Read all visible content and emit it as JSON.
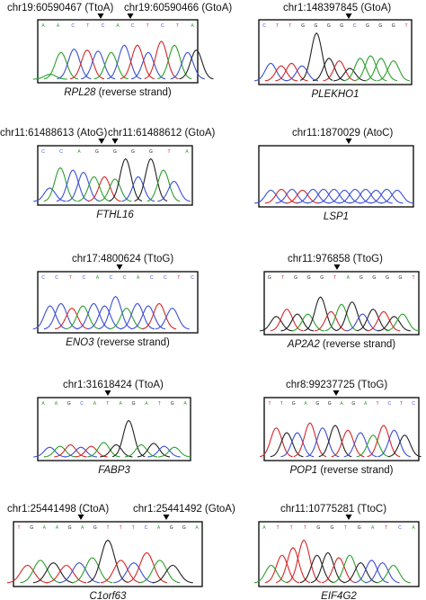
{
  "colors": {
    "A": "#2ca02c",
    "C": "#3b4fd6",
    "G": "#222222",
    "T": "#d62728",
    "frame": "#000000",
    "arrow": "#000000"
  },
  "panels": [
    {
      "id": "rpl28",
      "annotations": [
        "chr19:60590467 (TtoA)",
        "chr19:60590466 (GtoA)"
      ],
      "gene": "RPL28",
      "suffix": " (reverse strand)",
      "bases": "AACTCACTCTA",
      "trace": [
        [
          0.4,
          "A",
          0.1
        ],
        [
          0.9,
          "A",
          0.55
        ],
        [
          1.5,
          "C",
          0.62
        ],
        [
          2.1,
          "T",
          0.6
        ],
        [
          2.6,
          "C",
          0.58
        ],
        [
          3.2,
          "A",
          0.55
        ],
        [
          3.8,
          "C",
          0.7
        ],
        [
          4.4,
          "T",
          0.7
        ],
        [
          4.9,
          "C",
          0.55
        ],
        [
          5.5,
          "T",
          0.78
        ],
        [
          6.1,
          "A",
          0.7
        ],
        [
          6.7,
          "C",
          0.55
        ],
        [
          7.1,
          "G",
          0.6
        ]
      ]
    },
    {
      "id": "plekho1",
      "annotations": [
        "chr1:148397845 (GtoA)"
      ],
      "gene": "PLEKHO1",
      "suffix": "",
      "bases": "CTTGGGGCGGGT",
      "trace": [
        [
          0.4,
          "C",
          0.35
        ],
        [
          0.9,
          "T",
          0.3
        ],
        [
          1.4,
          "T",
          0.35
        ],
        [
          1.9,
          "C",
          0.3
        ],
        [
          2.6,
          "G",
          0.95
        ],
        [
          3.2,
          "G",
          0.45
        ],
        [
          3.7,
          "T",
          0.4
        ],
        [
          4.2,
          "G",
          0.25
        ],
        [
          4.7,
          "A",
          0.45
        ],
        [
          5.2,
          "A",
          0.5
        ],
        [
          5.7,
          "A",
          0.45
        ],
        [
          6.3,
          "A",
          0.4
        ]
      ]
    },
    {
      "id": "fthl16",
      "annotations": [
        "chr11:61488613 (AtoG)",
        "chr11:61488612 (GtoA)"
      ],
      "gene": "FTHL16",
      "suffix": "",
      "bases": "CCAGGGGTA",
      "trace": [
        [
          0.4,
          "C",
          0.3
        ],
        [
          0.9,
          "A",
          0.75
        ],
        [
          1.5,
          "C",
          0.7
        ],
        [
          2.0,
          "C",
          0.65
        ],
        [
          2.5,
          "A",
          0.55
        ],
        [
          3.0,
          "T",
          0.55
        ],
        [
          3.5,
          "A",
          0.5
        ],
        [
          4.0,
          "G",
          0.95
        ],
        [
          4.6,
          "C",
          0.55
        ],
        [
          5.2,
          "G",
          0.95
        ],
        [
          5.8,
          "A",
          0.7
        ],
        [
          6.3,
          "C",
          0.45
        ]
      ]
    },
    {
      "id": "lsp1",
      "annotations": [
        "chr11:1870029 (AtoC)"
      ],
      "gene": "LSP1",
      "suffix": "",
      "bases": "",
      "trace": [
        [
          0.4,
          "C",
          0.28
        ],
        [
          0.9,
          "T",
          0.3
        ],
        [
          1.4,
          "C",
          0.3
        ],
        [
          1.9,
          "T",
          0.28
        ],
        [
          2.4,
          "C",
          0.3
        ],
        [
          2.9,
          "C",
          0.3
        ],
        [
          3.4,
          "C",
          0.3
        ],
        [
          3.9,
          "C",
          0.28
        ],
        [
          4.4,
          "C",
          0.3
        ],
        [
          4.9,
          "C",
          0.3
        ],
        [
          5.4,
          "C",
          0.28
        ],
        [
          5.9,
          "C",
          0.3
        ],
        [
          6.4,
          "C",
          0.28
        ]
      ]
    },
    {
      "id": "eno3",
      "annotations": [
        "chr17:4800624 (TtoG)"
      ],
      "gene": "ENO3",
      "suffix": " (reverse strand)",
      "bases": "CCTCACCACCTC",
      "trace": [
        [
          0.4,
          "C",
          0.5
        ],
        [
          0.9,
          "C",
          0.55
        ],
        [
          1.4,
          "T",
          0.45
        ],
        [
          1.9,
          "A",
          0.5
        ],
        [
          2.4,
          "C",
          0.55
        ],
        [
          2.9,
          "C",
          0.5
        ],
        [
          3.4,
          "C",
          0.7
        ],
        [
          3.9,
          "A",
          0.45
        ],
        [
          4.4,
          "C",
          0.55
        ],
        [
          4.9,
          "C",
          0.5
        ],
        [
          5.4,
          "T",
          0.55
        ],
        [
          6.0,
          "C",
          0.45
        ]
      ]
    },
    {
      "id": "ap2a2",
      "annotations": [
        "chr11:976858 (TtoG)"
      ],
      "gene": "AP2A2",
      "suffix": " (reverse strand)",
      "bases": "GTGGGTAGGGGT",
      "trace": [
        [
          0.4,
          "G",
          0.3
        ],
        [
          0.9,
          "T",
          0.45
        ],
        [
          1.4,
          "G",
          0.35
        ],
        [
          1.9,
          "A",
          0.35
        ],
        [
          2.5,
          "G",
          0.7
        ],
        [
          3.0,
          "T",
          0.4
        ],
        [
          3.5,
          "A",
          0.55
        ],
        [
          4.0,
          "G",
          0.6
        ],
        [
          4.5,
          "C",
          0.35
        ],
        [
          5.0,
          "G",
          0.45
        ],
        [
          5.5,
          "T",
          0.4
        ],
        [
          6.0,
          "G",
          0.3
        ],
        [
          6.4,
          "A",
          0.35
        ]
      ]
    },
    {
      "id": "fabp3",
      "annotations": [
        "chr1:31618424 (TtoA)"
      ],
      "gene": "FABP3",
      "suffix": "",
      "bases": "AAGCATAGATGA",
      "trace": [
        [
          0.4,
          "C",
          0.2
        ],
        [
          0.9,
          "A",
          0.22
        ],
        [
          1.4,
          "T",
          0.25
        ],
        [
          1.9,
          "C",
          0.2
        ],
        [
          2.4,
          "T",
          0.22
        ],
        [
          3.0,
          "A",
          0.3
        ],
        [
          3.6,
          "G",
          0.25
        ],
        [
          4.2,
          "G",
          0.75
        ],
        [
          4.8,
          "A",
          0.25
        ],
        [
          5.4,
          "G",
          0.28
        ],
        [
          5.9,
          "C",
          0.22
        ],
        [
          6.4,
          "A",
          0.2
        ]
      ]
    },
    {
      "id": "pop1",
      "annotations": [
        "chr8:99237725 (TtoG)"
      ],
      "gene": "POP1",
      "suffix": " (reverse strand)",
      "bases": "TTGAGGAGATCTC",
      "trace": [
        [
          0.4,
          "T",
          0.6
        ],
        [
          0.9,
          "G",
          0.5
        ],
        [
          1.4,
          "C",
          0.5
        ],
        [
          2.0,
          "T",
          0.7
        ],
        [
          2.6,
          "C",
          0.6
        ],
        [
          3.2,
          "G",
          0.65
        ],
        [
          3.8,
          "T",
          0.55
        ],
        [
          4.4,
          "C",
          0.5
        ],
        [
          5.0,
          "A",
          0.45
        ],
        [
          5.5,
          "T",
          0.65
        ],
        [
          6.0,
          "C",
          0.55
        ],
        [
          6.5,
          "G",
          0.45
        ]
      ]
    },
    {
      "id": "c1orf63",
      "annotations": [
        "chr1:25441498 (CtoA)",
        "chr1:25441492 (GtoA)"
      ],
      "gene": "C1orf63",
      "suffix": "",
      "bases": "TGAAGAGTTTCAGGA",
      "trace": [
        [
          0.4,
          "T",
          0.35
        ],
        [
          0.9,
          "A",
          0.45
        ],
        [
          1.4,
          "G",
          0.4
        ],
        [
          1.9,
          "T",
          0.35
        ],
        [
          2.4,
          "C",
          0.4
        ],
        [
          2.9,
          "A",
          0.5
        ],
        [
          3.5,
          "G",
          0.85
        ],
        [
          4.0,
          "T",
          0.45
        ],
        [
          4.5,
          "C",
          0.4
        ],
        [
          5.0,
          "T",
          0.6
        ],
        [
          5.5,
          "A",
          0.45
        ],
        [
          6.0,
          "G",
          0.35
        ]
      ]
    },
    {
      "id": "eif4g2",
      "annotations": [
        "chr11:10775281 (TtoC)"
      ],
      "gene": "EIF4G2",
      "suffix": "",
      "bases": "ATTTGGTGATCA",
      "trace": [
        [
          0.4,
          "A",
          0.35
        ],
        [
          0.9,
          "T",
          0.55
        ],
        [
          1.4,
          "T",
          0.7
        ],
        [
          1.9,
          "T",
          0.85
        ],
        [
          2.5,
          "G",
          0.55
        ],
        [
          3.0,
          "G",
          0.6
        ],
        [
          3.5,
          "T",
          0.5
        ],
        [
          4.0,
          "A",
          0.55
        ],
        [
          4.5,
          "G",
          0.4
        ],
        [
          5.0,
          "C",
          0.45
        ],
        [
          5.5,
          "C",
          0.4
        ],
        [
          6.0,
          "A",
          0.35
        ]
      ]
    }
  ]
}
